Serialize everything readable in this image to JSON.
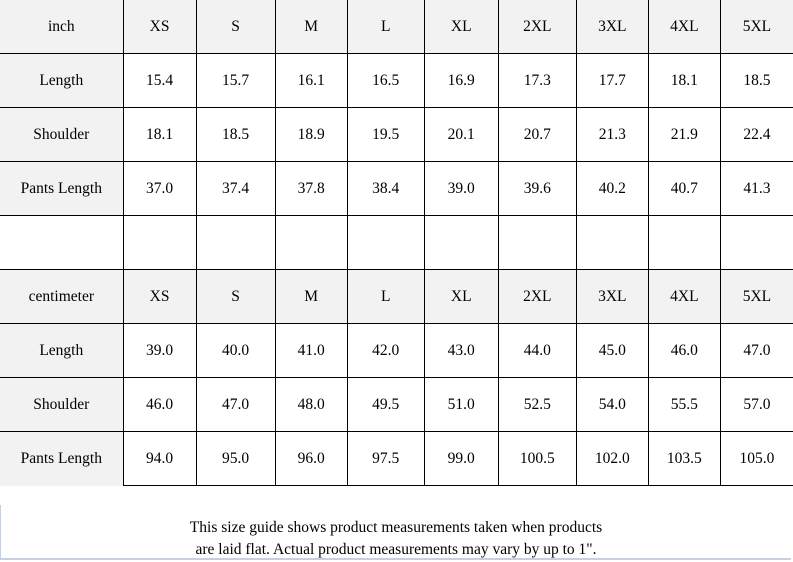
{
  "inch": {
    "header": [
      "inch",
      "XS",
      "S",
      "M",
      "L",
      "XL",
      "2XL",
      "3XL",
      "4XL",
      "5XL"
    ],
    "rows": [
      [
        "Length",
        "15.4",
        "15.7",
        "16.1",
        "16.5",
        "16.9",
        "17.3",
        "17.7",
        "18.1",
        "18.5"
      ],
      [
        "Shoulder",
        "18.1",
        "18.5",
        "18.9",
        "19.5",
        "20.1",
        "20.7",
        "21.3",
        "21.9",
        "22.4"
      ],
      [
        "Pants Length",
        "37.0",
        "37.4",
        "37.8",
        "38.4",
        "39.0",
        "39.6",
        "40.2",
        "40.7",
        "41.3"
      ]
    ]
  },
  "centimeter": {
    "header": [
      "centimeter",
      "XS",
      "S",
      "M",
      "L",
      "XL",
      "2XL",
      "3XL",
      "4XL",
      "5XL"
    ],
    "rows": [
      [
        "Length",
        "39.0",
        "40.0",
        "41.0",
        "42.0",
        "43.0",
        "44.0",
        "45.0",
        "46.0",
        "47.0"
      ],
      [
        "Shoulder",
        "46.0",
        "47.0",
        "48.0",
        "49.5",
        "51.0",
        "52.5",
        "54.0",
        "55.5",
        "57.0"
      ],
      [
        "Pants Length",
        "94.0",
        "95.0",
        "96.0",
        "97.5",
        "99.0",
        "100.5",
        "102.0",
        "103.5",
        "105.0"
      ]
    ]
  },
  "footer": {
    "line1": "This size guide shows product measurements taken when products",
    "line2": "are laid flat. Actual product measurements may vary by up to 1\"."
  }
}
